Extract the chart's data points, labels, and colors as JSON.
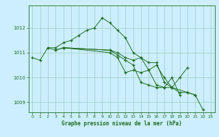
{
  "title": "Graphe pression niveau de la mer (hPa)",
  "bg_color": "#cceeff",
  "grid_color": "#99ccbb",
  "line_color": "#1a6b1a",
  "xlim": [
    -0.5,
    23.5
  ],
  "ylim": [
    1008.6,
    1012.9
  ],
  "yticks": [
    1009,
    1010,
    1011,
    1012
  ],
  "xticks": [
    0,
    1,
    2,
    3,
    4,
    5,
    6,
    7,
    8,
    9,
    10,
    11,
    12,
    13,
    14,
    15,
    16,
    17,
    18,
    19,
    20,
    21,
    22,
    23
  ],
  "series": [
    [
      1010.8,
      1010.7,
      1011.2,
      1011.2,
      1011.4,
      1011.5,
      1011.7,
      1011.9,
      1012.0,
      1012.4,
      1012.2,
      1011.9,
      1011.6,
      1011.0,
      1010.8,
      1010.6,
      1010.6,
      1009.8,
      1009.6,
      1009.4,
      1009.4,
      1009.3,
      null,
      null
    ],
    [
      null,
      null,
      1011.2,
      1011.1,
      1011.2,
      null,
      null,
      null,
      null,
      null,
      1011.1,
      1011.0,
      1010.8,
      1010.7,
      1010.8,
      1010.3,
      1009.7,
      1009.6,
      1009.6,
      1010.0,
      1010.4,
      null,
      null,
      null
    ],
    [
      null,
      null,
      null,
      1011.1,
      1011.2,
      null,
      null,
      null,
      null,
      null,
      1011.1,
      1010.9,
      1010.7,
      1010.5,
      1009.8,
      1009.7,
      1009.6,
      1009.6,
      1010.0,
      1009.3,
      null,
      null,
      null,
      null
    ],
    [
      null,
      null,
      null,
      null,
      1011.2,
      null,
      null,
      null,
      null,
      null,
      1011.0,
      1010.8,
      1010.2,
      1010.3,
      1010.2,
      1010.3,
      1010.5,
      1010.0,
      1009.6,
      null,
      1009.4,
      1009.3,
      1008.7,
      null
    ]
  ]
}
